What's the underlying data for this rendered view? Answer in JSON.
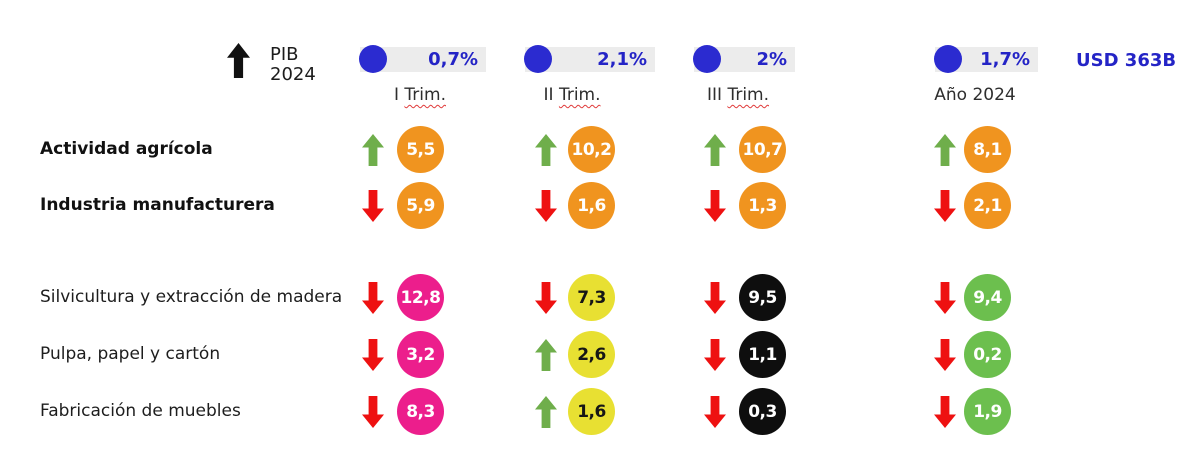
{
  "header": {
    "pib_label": "PIB",
    "pib_year": "2024",
    "usd_total": "USD 363B",
    "quarters": [
      {
        "title_plain": "I",
        "title_underlined": "Trim.",
        "value": "0,7%"
      },
      {
        "title_plain": "II",
        "title_underlined": "Trim.",
        "value": "2,1%"
      },
      {
        "title_plain": "III",
        "title_underlined": "Trim.",
        "value": "2%"
      },
      {
        "title_plain": "Año 2024",
        "title_underlined": "",
        "value": "1,7%"
      }
    ]
  },
  "colors": {
    "accent_blue": "#2b2bd0",
    "pill_gray": "#ececec",
    "bubble_orange": "#f0941f",
    "bubble_pink": "#ec1e8c",
    "bubble_yellow": "#e8e032",
    "bubble_black": "#0e0e0e",
    "bubble_green": "#6cbf4e",
    "arrow_up_green": "#6fae4b",
    "arrow_down_red": "#ee1111"
  },
  "rows": [
    {
      "label": "Actividad agrícola",
      "cells": [
        {
          "dir": "up",
          "color": "orange",
          "value": "5,5"
        },
        {
          "dir": "up",
          "color": "orange",
          "value": "10,2"
        },
        {
          "dir": "up",
          "color": "orange",
          "value": "10,7"
        },
        {
          "dir": "up",
          "color": "orange",
          "value": "8,1"
        }
      ]
    },
    {
      "label": "Industria manufacturera",
      "cells": [
        {
          "dir": "down",
          "color": "orange",
          "value": "5,9"
        },
        {
          "dir": "down",
          "color": "orange",
          "value": "1,6"
        },
        {
          "dir": "down",
          "color": "orange",
          "value": "1,3"
        },
        {
          "dir": "down",
          "color": "orange",
          "value": "2,1"
        }
      ]
    },
    {
      "label": "Silvicultura y extracción de madera",
      "cells": [
        {
          "dir": "down",
          "color": "pink",
          "value": "12,8"
        },
        {
          "dir": "down",
          "color": "yellow",
          "value": "7,3"
        },
        {
          "dir": "down",
          "color": "black",
          "value": "9,5"
        },
        {
          "dir": "down",
          "color": "green",
          "value": "9,4"
        }
      ]
    },
    {
      "label": "Pulpa, papel y cartón",
      "cells": [
        {
          "dir": "down",
          "color": "pink",
          "value": "3,2"
        },
        {
          "dir": "up",
          "color": "yellow",
          "value": "2,6"
        },
        {
          "dir": "down",
          "color": "black",
          "value": "1,1"
        },
        {
          "dir": "down",
          "color": "green",
          "value": "0,2"
        }
      ]
    },
    {
      "label": "Fabricación de muebles",
      "cells": [
        {
          "dir": "down",
          "color": "pink",
          "value": "8,3"
        },
        {
          "dir": "up",
          "color": "yellow",
          "value": "1,6"
        },
        {
          "dir": "down",
          "color": "black",
          "value": "0,3"
        },
        {
          "dir": "down",
          "color": "green",
          "value": "1,9"
        }
      ]
    }
  ],
  "chart_data": {
    "type": "table",
    "title": "PIB 2024",
    "columns": [
      "I Trim.",
      "II Trim.",
      "III Trim.",
      "Año 2024"
    ],
    "gdp_growth_pct": [
      0.7,
      2.1,
      2.0,
      1.7
    ],
    "gdp_total": "USD 363B",
    "rows": [
      {
        "sector": "Actividad agrícola",
        "values": [
          5.5,
          10.2,
          10.7,
          8.1
        ],
        "trend": [
          "up",
          "up",
          "up",
          "up"
        ]
      },
      {
        "sector": "Industria manufacturera",
        "values": [
          5.9,
          1.6,
          1.3,
          2.1
        ],
        "trend": [
          "down",
          "down",
          "down",
          "down"
        ]
      },
      {
        "sector": "Silvicultura y extracción de madera",
        "values": [
          12.8,
          7.3,
          9.5,
          9.4
        ],
        "trend": [
          "down",
          "down",
          "down",
          "down"
        ]
      },
      {
        "sector": "Pulpa, papel y cartón",
        "values": [
          3.2,
          2.6,
          1.1,
          0.2
        ],
        "trend": [
          "down",
          "up",
          "down",
          "down"
        ]
      },
      {
        "sector": "Fabricación de muebles",
        "values": [
          8.3,
          1.6,
          0.3,
          1.9
        ],
        "trend": [
          "down",
          "up",
          "down",
          "down"
        ]
      }
    ],
    "legend": "Circle color varies by quarter for forestry group: I Trim = pink, II Trim = yellow, III Trim = black, Año 2024 = green; agriculture/manufacturing = orange"
  }
}
